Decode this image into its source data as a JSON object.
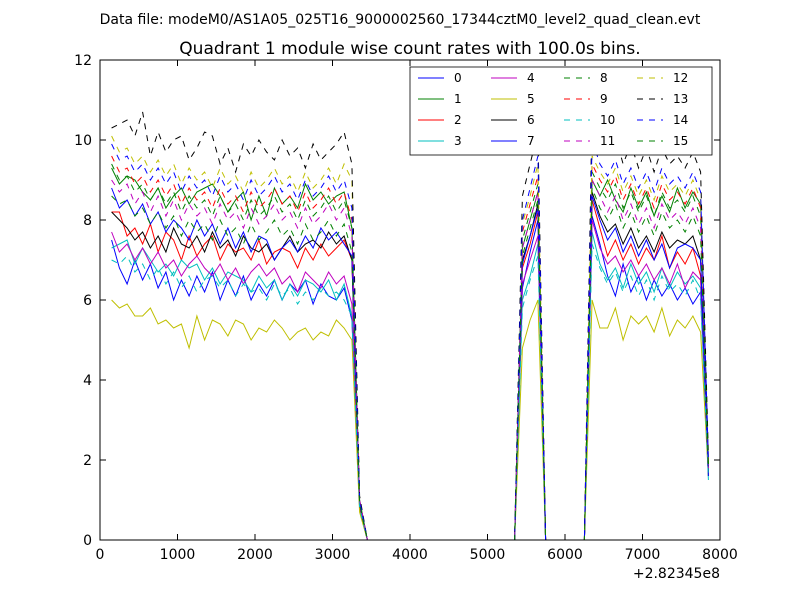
{
  "chart_data": {
    "type": "line",
    "suptitle": "Data file: modeM0/AS1A05_025T16_9000002560_17344cztM0_level2_quad_clean.evt",
    "title": "Quadrant 1 module wise count rates with 100.0s bins.",
    "xlabel": "",
    "ylabel": "",
    "offset_label": "+2.82345e8",
    "xlim": [
      0,
      8000
    ],
    "ylim": [
      0,
      12
    ],
    "xticks": [
      0,
      1000,
      2000,
      3000,
      4000,
      5000,
      6000,
      7000,
      8000
    ],
    "xtick_labels": [
      "0",
      "1000",
      "2000",
      "3000",
      "4000",
      "5000",
      "6000",
      "7000",
      "8000"
    ],
    "yticks": [
      0,
      2,
      4,
      6,
      8,
      10,
      12
    ],
    "ytick_labels": [
      "0",
      "2",
      "4",
      "6",
      "8",
      "10",
      "12"
    ],
    "legend_position": "top-right",
    "legend_columns": 4,
    "grid": false,
    "x": [
      150,
      250,
      350,
      450,
      550,
      650,
      750,
      850,
      950,
      1050,
      1150,
      1250,
      1350,
      1450,
      1550,
      1650,
      1750,
      1850,
      1950,
      2050,
      2150,
      2250,
      2350,
      2450,
      2550,
      2650,
      2750,
      2850,
      2950,
      3050,
      3150,
      3250,
      3350,
      3450,
      5350,
      5450,
      5550,
      5650,
      5750,
      5850,
      5950,
      6050,
      6150,
      6250,
      6350,
      6450,
      6550,
      6650,
      6750,
      6850,
      6950,
      7050,
      7150,
      7250,
      7350,
      7450,
      7550,
      7650,
      7750,
      7850
    ],
    "series": [
      {
        "name": "0",
        "color": "#0000ff",
        "dash": "solid",
        "values": [
          7.5,
          6.8,
          6.4,
          7.0,
          6.5,
          6.9,
          6.3,
          6.7,
          6.0,
          6.5,
          6.1,
          6.6,
          6.2,
          6.7,
          6.0,
          6.5,
          6.1,
          6.6,
          6.0,
          6.4,
          6.1,
          6.5,
          6.0,
          6.4,
          6.2,
          6.5,
          5.9,
          6.4,
          6.1,
          6.0,
          6.3,
          5.5,
          0.8,
          0.0,
          0.0,
          6.3,
          7.2,
          8.0,
          0.0,
          0.0,
          0.0,
          0.0,
          0.0,
          0.0,
          8.1,
          7.4,
          6.6,
          6.1,
          6.9,
          6.2,
          6.6,
          6.0,
          6.5,
          6.1,
          6.4,
          6.0,
          6.3,
          5.9,
          6.2,
          1.6
        ]
      },
      {
        "name": "1",
        "color": "#008000",
        "dash": "solid",
        "values": [
          9.3,
          8.9,
          9.1,
          9.0,
          8.7,
          8.5,
          8.8,
          8.3,
          8.6,
          8.8,
          8.4,
          8.7,
          8.8,
          8.9,
          8.6,
          8.2,
          8.5,
          8.7,
          8.0,
          8.6,
          8.1,
          8.8,
          8.4,
          8.6,
          8.3,
          8.9,
          8.5,
          8.7,
          8.4,
          8.6,
          8.7,
          7.8,
          1.0,
          0.0,
          0.0,
          7.3,
          8.0,
          8.7,
          0.0,
          0.0,
          0.0,
          0.0,
          0.0,
          0.0,
          9.0,
          8.6,
          9.0,
          8.5,
          8.2,
          8.8,
          8.3,
          8.7,
          8.1,
          8.6,
          8.2,
          8.8,
          8.3,
          8.7,
          8.4,
          1.9
        ]
      },
      {
        "name": "2",
        "color": "#ff0000",
        "dash": "solid",
        "values": [
          8.2,
          8.2,
          7.6,
          7.8,
          7.4,
          7.9,
          7.2,
          7.7,
          7.5,
          7.0,
          7.6,
          7.1,
          7.4,
          7.6,
          7.0,
          7.4,
          7.2,
          7.3,
          7.0,
          7.5,
          6.9,
          7.2,
          7.3,
          7.2,
          6.8,
          7.3,
          7.0,
          7.4,
          7.1,
          7.3,
          7.5,
          7.0,
          0.9,
          0.0,
          0.0,
          6.8,
          7.4,
          8.2,
          0.0,
          0.0,
          0.0,
          0.0,
          0.0,
          0.0,
          8.5,
          7.8,
          7.1,
          7.5,
          7.0,
          7.4,
          6.9,
          7.3,
          7.0,
          7.6,
          6.8,
          7.2,
          6.9,
          7.3,
          6.6,
          1.8
        ]
      },
      {
        "name": "3",
        "color": "#00bfbf",
        "dash": "solid",
        "values": [
          7.3,
          7.4,
          7.5,
          6.9,
          7.3,
          7.0,
          6.7,
          6.9,
          6.6,
          7.0,
          6.8,
          6.9,
          6.5,
          6.8,
          6.4,
          6.7,
          6.6,
          6.5,
          6.2,
          6.6,
          6.3,
          6.5,
          6.0,
          6.4,
          6.1,
          6.5,
          6.4,
          6.2,
          6.5,
          6.0,
          6.4,
          5.6,
          0.9,
          0.0,
          0.0,
          6.0,
          6.6,
          7.4,
          0.0,
          0.0,
          0.0,
          0.0,
          0.0,
          0.0,
          7.7,
          6.9,
          6.5,
          6.8,
          6.3,
          6.9,
          6.4,
          6.7,
          6.2,
          6.8,
          6.3,
          6.7,
          6.4,
          6.6,
          6.3,
          1.5
        ]
      },
      {
        "name": "4",
        "color": "#bf00bf",
        "dash": "solid",
        "values": [
          7.7,
          7.2,
          7.4,
          7.0,
          7.3,
          6.9,
          7.2,
          6.8,
          7.0,
          6.6,
          6.9,
          7.1,
          6.8,
          6.6,
          6.9,
          6.5,
          6.8,
          6.4,
          6.7,
          6.9,
          6.6,
          6.8,
          6.4,
          6.6,
          6.2,
          6.7,
          6.5,
          6.3,
          6.7,
          6.4,
          6.6,
          5.9,
          0.8,
          0.0,
          0.0,
          6.4,
          7.0,
          7.6,
          0.0,
          0.0,
          0.0,
          0.0,
          0.0,
          0.0,
          8.0,
          7.3,
          6.9,
          7.1,
          6.7,
          7.0,
          6.6,
          6.9,
          6.5,
          6.8,
          6.4,
          6.9,
          6.3,
          6.7,
          6.5,
          1.7
        ]
      },
      {
        "name": "5",
        "color": "#bfbf00",
        "dash": "solid",
        "values": [
          6.0,
          5.8,
          5.9,
          5.6,
          5.6,
          5.8,
          5.4,
          5.5,
          5.3,
          5.4,
          4.8,
          5.6,
          5.0,
          5.5,
          5.4,
          5.1,
          5.5,
          5.4,
          5.0,
          5.3,
          5.2,
          5.5,
          5.3,
          5.0,
          5.2,
          5.3,
          5.0,
          5.2,
          5.1,
          5.5,
          5.3,
          5.0,
          0.7,
          0.0,
          0.0,
          4.8,
          5.5,
          6.0,
          0.0,
          0.0,
          0.0,
          0.0,
          0.0,
          0.0,
          6.0,
          5.3,
          5.3,
          5.8,
          5.0,
          5.6,
          5.4,
          5.6,
          5.2,
          5.8,
          5.1,
          5.5,
          5.3,
          5.6,
          5.2,
          1.6
        ]
      },
      {
        "name": "6",
        "color": "#000000",
        "dash": "solid",
        "values": [
          8.2,
          8.0,
          7.8,
          7.5,
          7.7,
          7.3,
          7.6,
          7.2,
          7.8,
          7.4,
          7.3,
          7.6,
          7.2,
          7.7,
          7.3,
          7.5,
          7.1,
          7.6,
          7.3,
          7.2,
          7.4,
          7.0,
          7.3,
          7.6,
          7.2,
          7.4,
          7.5,
          7.3,
          7.7,
          7.4,
          7.6,
          7.0,
          0.9,
          0.0,
          0.0,
          7.0,
          7.6,
          8.4,
          0.0,
          0.0,
          0.0,
          0.0,
          0.0,
          0.0,
          8.7,
          8.1,
          7.7,
          7.9,
          7.4,
          7.8,
          7.3,
          7.6,
          7.2,
          7.7,
          7.3,
          7.5,
          7.4,
          7.6,
          7.0,
          1.7
        ]
      },
      {
        "name": "7",
        "color": "#0000ff",
        "dash": "solid",
        "values": [
          8.8,
          8.3,
          8.5,
          8.1,
          8.4,
          7.9,
          8.2,
          7.7,
          8.0,
          7.8,
          7.5,
          8.0,
          7.6,
          7.9,
          7.4,
          7.8,
          7.3,
          7.7,
          7.2,
          7.6,
          7.5,
          7.0,
          7.3,
          7.5,
          7.2,
          7.6,
          7.3,
          7.8,
          7.5,
          7.7,
          7.4,
          7.1,
          0.9,
          0.0,
          0.0,
          6.9,
          7.6,
          8.3,
          0.0,
          0.0,
          0.0,
          0.0,
          0.0,
          0.0,
          8.6,
          8.0,
          7.5,
          7.8,
          7.2,
          7.6,
          7.1,
          7.5,
          7.0,
          7.4,
          6.8,
          7.3,
          7.4,
          7.3,
          7.0,
          1.6
        ]
      },
      {
        "name": "8",
        "color": "#008000",
        "dash": "dashed",
        "values": [
          9.4,
          9.0,
          9.1,
          8.7,
          8.9,
          8.5,
          8.8,
          8.4,
          8.7,
          8.2,
          8.6,
          8.3,
          8.5,
          8.1,
          8.6,
          8.2,
          8.4,
          8.0,
          8.5,
          8.1,
          8.3,
          8.6,
          8.2,
          8.4,
          8.0,
          8.5,
          8.1,
          8.3,
          8.6,
          8.2,
          8.5,
          7.8,
          1.0,
          0.0,
          0.0,
          7.5,
          8.2,
          8.9,
          0.0,
          0.0,
          0.0,
          0.0,
          0.0,
          0.0,
          9.2,
          8.8,
          8.5,
          8.9,
          8.3,
          8.7,
          8.2,
          8.6,
          8.1,
          8.7,
          8.3,
          8.5,
          8.2,
          8.6,
          8.1,
          1.9
        ]
      },
      {
        "name": "9",
        "color": "#ff0000",
        "dash": "dashed",
        "values": [
          9.6,
          9.2,
          9.3,
          8.9,
          9.1,
          8.7,
          9.0,
          8.6,
          8.9,
          8.4,
          8.8,
          8.5,
          8.7,
          8.3,
          8.8,
          8.4,
          8.6,
          8.2,
          8.7,
          8.3,
          8.5,
          8.8,
          8.4,
          8.6,
          8.2,
          8.7,
          8.3,
          8.5,
          8.8,
          8.4,
          8.7,
          8.0,
          1.0,
          0.0,
          0.0,
          7.7,
          8.4,
          9.1,
          0.0,
          0.0,
          0.0,
          0.0,
          0.0,
          0.0,
          9.4,
          9.0,
          8.7,
          9.1,
          8.5,
          8.9,
          8.4,
          8.8,
          8.3,
          8.9,
          8.5,
          8.7,
          8.4,
          8.8,
          8.3,
          1.9
        ]
      },
      {
        "name": "10",
        "color": "#00bfbf",
        "dash": "dashed",
        "values": [
          7.0,
          6.9,
          7.1,
          6.7,
          6.9,
          6.5,
          6.8,
          6.4,
          6.7,
          6.3,
          6.6,
          6.2,
          6.5,
          6.6,
          6.3,
          6.5,
          6.1,
          6.4,
          6.2,
          6.3,
          6.0,
          6.4,
          6.1,
          6.3,
          5.9,
          6.2,
          6.0,
          6.3,
          6.1,
          6.2,
          6.0,
          5.6,
          0.8,
          0.0,
          0.0,
          5.8,
          6.5,
          7.1,
          0.0,
          0.0,
          0.0,
          0.0,
          0.0,
          0.0,
          7.4,
          6.8,
          6.4,
          6.7,
          6.2,
          6.6,
          6.1,
          6.5,
          6.0,
          6.6,
          6.2,
          6.4,
          6.1,
          6.5,
          6.0,
          1.6
        ]
      },
      {
        "name": "11",
        "color": "#bf00bf",
        "dash": "dashed",
        "values": [
          9.0,
          8.7,
          8.9,
          8.4,
          8.7,
          8.2,
          8.6,
          8.1,
          8.5,
          8.0,
          8.4,
          8.1,
          8.3,
          7.9,
          8.4,
          8.0,
          8.2,
          7.8,
          8.3,
          7.9,
          8.1,
          8.4,
          8.0,
          8.2,
          7.8,
          8.3,
          7.9,
          8.1,
          8.4,
          8.0,
          8.3,
          7.6,
          1.0,
          0.0,
          0.0,
          7.3,
          8.0,
          8.7,
          0.0,
          0.0,
          0.0,
          0.0,
          0.0,
          0.0,
          9.0,
          8.6,
          8.2,
          8.6,
          8.0,
          8.4,
          7.9,
          8.3,
          7.8,
          8.4,
          8.0,
          8.2,
          7.9,
          8.3,
          7.8,
          1.8
        ]
      },
      {
        "name": "12",
        "color": "#bfbf00",
        "dash": "dashed",
        "values": [
          10.1,
          9.7,
          9.8,
          9.4,
          9.6,
          9.2,
          9.5,
          9.1,
          9.4,
          8.9,
          9.3,
          9.0,
          9.2,
          8.8,
          9.3,
          8.9,
          9.1,
          8.7,
          9.2,
          8.8,
          9.0,
          9.3,
          8.9,
          9.1,
          8.7,
          9.2,
          8.8,
          9.0,
          9.3,
          8.9,
          9.4,
          9.0,
          1.0,
          0.0,
          0.0,
          7.9,
          8.6,
          9.4,
          0.0,
          0.0,
          0.0,
          0.0,
          0.0,
          0.0,
          9.6,
          9.2,
          8.9,
          9.3,
          8.7,
          9.1,
          8.6,
          9.0,
          8.5,
          9.1,
          8.7,
          8.9,
          8.6,
          9.0,
          8.5,
          2.0
        ]
      },
      {
        "name": "13",
        "color": "#000000",
        "dash": "dashed",
        "values": [
          10.3,
          10.4,
          10.5,
          10.1,
          10.7,
          9.6,
          10.2,
          9.7,
          10.0,
          10.1,
          9.5,
          9.8,
          10.2,
          10.1,
          9.4,
          9.8,
          9.2,
          9.9,
          9.6,
          10.0,
          9.7,
          9.5,
          10.0,
          9.6,
          9.8,
          9.3,
          9.9,
          9.5,
          9.7,
          9.9,
          10.2,
          9.4,
          1.1,
          0.0,
          0.0,
          8.6,
          9.4,
          10.2,
          0.0,
          0.0,
          0.0,
          0.0,
          0.0,
          0.0,
          10.8,
          10.0,
          9.7,
          10.1,
          9.4,
          9.9,
          9.3,
          9.8,
          9.2,
          9.8,
          9.4,
          9.6,
          9.3,
          9.7,
          9.2,
          2.1
        ]
      },
      {
        "name": "14",
        "color": "#0000ff",
        "dash": "dashed",
        "values": [
          9.9,
          9.5,
          9.6,
          9.2,
          9.4,
          9.0,
          9.3,
          8.9,
          9.2,
          8.7,
          9.1,
          8.8,
          9.0,
          8.6,
          9.1,
          8.7,
          8.9,
          8.5,
          9.0,
          8.6,
          8.8,
          9.1,
          8.7,
          8.9,
          8.5,
          9.0,
          8.6,
          8.8,
          9.1,
          8.7,
          9.0,
          8.3,
          1.0,
          0.0,
          0.0,
          8.0,
          8.8,
          9.6,
          0.0,
          0.0,
          0.0,
          0.0,
          0.0,
          0.0,
          10.0,
          9.4,
          9.1,
          9.5,
          8.9,
          9.3,
          8.8,
          9.2,
          8.7,
          9.3,
          8.9,
          9.1,
          8.8,
          9.2,
          8.7,
          2.0
        ]
      },
      {
        "name": "15",
        "color": "#008000",
        "dash": "dashed",
        "values": [
          8.6,
          8.4,
          8.5,
          8.1,
          8.3,
          7.9,
          8.2,
          7.8,
          8.1,
          7.6,
          8.0,
          7.7,
          7.9,
          7.5,
          8.0,
          7.6,
          7.8,
          7.4,
          7.9,
          7.5,
          7.7,
          8.0,
          7.6,
          7.8,
          7.4,
          7.9,
          7.5,
          7.7,
          8.0,
          7.6,
          7.9,
          7.2,
          0.9,
          0.0,
          0.0,
          7.1,
          7.8,
          8.5,
          0.0,
          0.0,
          0.0,
          0.0,
          0.0,
          0.0,
          8.8,
          8.3,
          8.0,
          8.4,
          7.8,
          8.2,
          7.7,
          8.1,
          7.6,
          8.2,
          7.8,
          8.0,
          7.7,
          8.1,
          7.6,
          1.8
        ]
      }
    ]
  }
}
